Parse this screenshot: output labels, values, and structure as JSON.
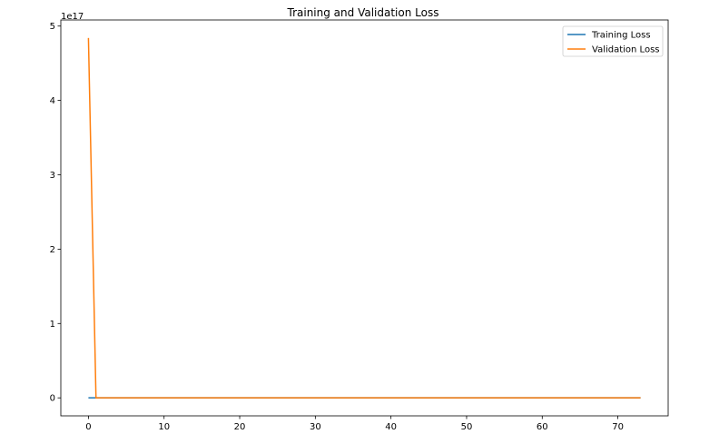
{
  "chart_data": {
    "type": "line",
    "title": "Training and Validation Loss",
    "xlabel": "",
    "ylabel": "",
    "y_offset_label": "1e17",
    "x": [
      0,
      1,
      73
    ],
    "series": [
      {
        "name": "Training Loss",
        "color": "#1f77b4",
        "values": [
          0,
          0,
          0
        ]
      },
      {
        "name": "Validation Loss",
        "color": "#ff7f0e",
        "values": [
          4.84e+17,
          0,
          0
        ]
      }
    ],
    "xlim": [
      -3.65,
      76.65
    ],
    "ylim": [
      -2.42e+16,
      5.082e+17
    ],
    "xticks": [
      0,
      10,
      20,
      30,
      40,
      50,
      60,
      70
    ],
    "yticks": [
      0,
      1,
      2,
      3,
      4,
      5
    ],
    "ytick_scale": 1e+17,
    "grid": false,
    "legend_position": "top-right"
  }
}
